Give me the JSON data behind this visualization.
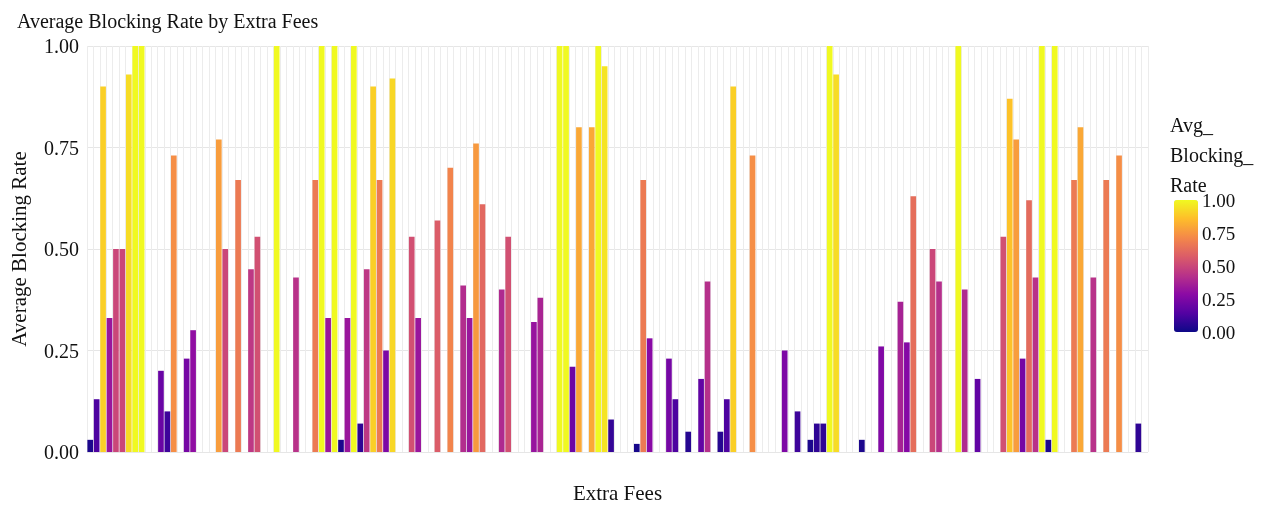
{
  "chart_data": {
    "type": "bar",
    "title": "Average Blocking Rate by Extra Fees",
    "xlabel": "Extra Fees",
    "ylabel": "Average Blocking Rate",
    "clabel": "Avg_Blocking_Rate",
    "categories": [
      null,
      null,
      null,
      null,
      null,
      null,
      null,
      null,
      null,
      null,
      null,
      null,
      null,
      null,
      null,
      null,
      null,
      null,
      null,
      null,
      null,
      null,
      null,
      null,
      null,
      null,
      null,
      null,
      null,
      null,
      null,
      null,
      null,
      null,
      null,
      null,
      null,
      null,
      null,
      null,
      null,
      null,
      null,
      null,
      null,
      null,
      null,
      null,
      null,
      null,
      null,
      null,
      null,
      null,
      null,
      null,
      null,
      null,
      null,
      null,
      null,
      null,
      null,
      null,
      null,
      null,
      null,
      null,
      null,
      null,
      null,
      null,
      null,
      null,
      null,
      null,
      null,
      null,
      null,
      null,
      null,
      null,
      null,
      null,
      null,
      null,
      null,
      null,
      null,
      null,
      null,
      null,
      null,
      null,
      null,
      null,
      null,
      null,
      null,
      null,
      null,
      null,
      null,
      null,
      null,
      null,
      null,
      null,
      null,
      null,
      null,
      null,
      null,
      null,
      null,
      null,
      null,
      null,
      null,
      null,
      null,
      null,
      null,
      null,
      null,
      null,
      null,
      null,
      null,
      null,
      null,
      null,
      null,
      null,
      null,
      null,
      null,
      null,
      null,
      null,
      null,
      null,
      null,
      null,
      null,
      null,
      null,
      null,
      null,
      null,
      null,
      null,
      null,
      null,
      null,
      null,
      null,
      null,
      null,
      null,
      null,
      null,
      null,
      null,
      null
    ],
    "values": [
      0.03,
      0.13,
      0.9,
      0.33,
      0.5,
      0.5,
      0.93,
      1,
      1,
      null,
      null,
      0.2,
      0.1,
      0.73,
      null,
      0.23,
      0.3,
      null,
      null,
      null,
      0.77,
      0.5,
      null,
      0.67,
      null,
      0.45,
      0.53,
      null,
      null,
      1,
      null,
      null,
      0.43,
      null,
      null,
      0.67,
      1,
      0.33,
      1,
      0.03,
      0.33,
      1,
      0.07,
      0.45,
      0.9,
      0.67,
      0.25,
      0.92,
      null,
      null,
      0.53,
      0.33,
      null,
      null,
      0.57,
      null,
      0.7,
      null,
      0.41,
      0.33,
      0.76,
      0.61,
      null,
      null,
      0.4,
      0.53,
      null,
      null,
      null,
      0.32,
      0.38,
      null,
      null,
      1,
      1,
      0.21,
      0.8,
      null,
      0.8,
      1,
      0.95,
      0.08,
      null,
      null,
      null,
      0.02,
      0.67,
      0.28,
      null,
      null,
      0.23,
      0.13,
      null,
      0.05,
      null,
      0.18,
      0.42,
      null,
      0.05,
      0.13,
      0.9,
      null,
      null,
      0.73,
      null,
      null,
      null,
      null,
      0.25,
      null,
      0.1,
      null,
      0.03,
      0.07,
      0.07,
      1,
      0.93,
      null,
      null,
      null,
      0.03,
      null,
      null,
      0.26,
      null,
      null,
      0.37,
      0.27,
      0.63,
      null,
      null,
      0.5,
      0.42,
      null,
      null,
      1,
      0.4,
      null,
      0.18,
      null,
      null,
      null,
      0.53,
      0.87,
      0.77,
      0.23,
      0.62,
      0.43,
      1,
      0.03,
      1,
      null,
      null,
      0.67,
      0.8,
      null,
      0.43,
      null,
      0.67,
      null,
      0.73,
      null,
      null,
      0.07,
      null
    ],
    "ylim": [
      0,
      1
    ],
    "yticks": [
      {
        "value": 0,
        "label": "0.00"
      },
      {
        "value": 0.25,
        "label": "0.25"
      },
      {
        "value": 0.5,
        "label": "0.50"
      },
      {
        "value": 0.75,
        "label": "0.75"
      },
      {
        "value": 1,
        "label": "1.00"
      }
    ],
    "clim": [
      0,
      1
    ],
    "cticks": [
      {
        "value": 0,
        "label": "0.00"
      },
      {
        "value": 0.25,
        "label": "0.25"
      },
      {
        "value": 0.5,
        "label": "0.50"
      },
      {
        "value": 0.75,
        "label": "0.75"
      },
      {
        "value": 1,
        "label": "1.00"
      }
    ],
    "grid": true
  }
}
